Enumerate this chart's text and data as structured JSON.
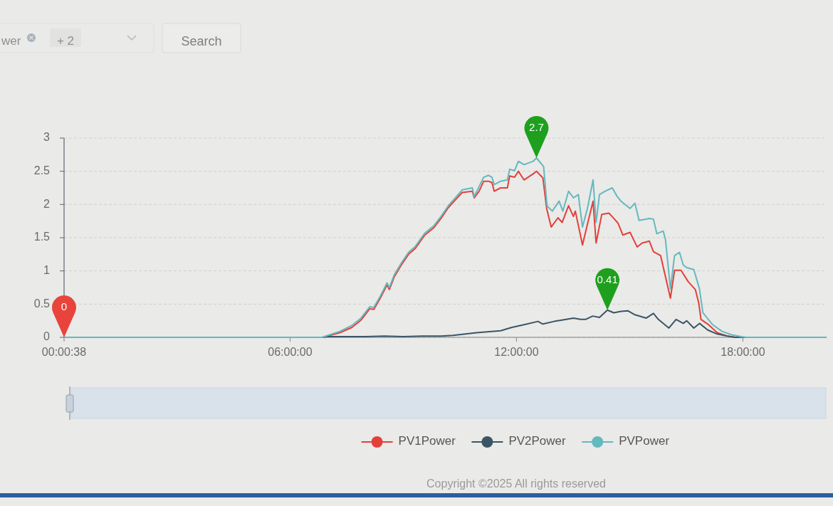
{
  "chart_data": {
    "type": "line",
    "series": [
      {
        "name": "PV1Power",
        "color": "#e2403a",
        "x": [
          0.0106,
          6.85,
          7.0,
          7.32,
          7.64,
          7.88,
          8.11,
          8.22,
          8.39,
          8.57,
          8.63,
          8.76,
          8.95,
          9.14,
          9.32,
          9.57,
          9.81,
          10.0,
          10.19,
          10.38,
          10.56,
          10.83,
          10.88,
          11.01,
          11.13,
          11.26,
          11.35,
          11.41,
          11.58,
          11.76,
          11.82,
          11.95,
          12.05,
          12.2,
          12.44,
          12.53,
          12.7,
          12.8,
          12.92,
          13.1,
          13.21,
          13.38,
          13.51,
          13.56,
          13.75,
          13.88,
          14.03,
          14.11,
          14.26,
          14.45,
          14.58,
          14.69,
          14.82,
          15.01,
          15.2,
          15.33,
          15.52,
          15.63,
          15.82,
          15.95,
          16.08,
          16.19,
          16.36,
          16.55,
          16.74,
          16.83,
          16.89,
          17.07,
          17.32,
          17.58,
          17.8,
          20.2
        ],
        "values": [
          0,
          0,
          0.02,
          0.07,
          0.15,
          0.26,
          0.43,
          0.42,
          0.59,
          0.79,
          0.72,
          0.91,
          1.09,
          1.25,
          1.34,
          1.54,
          1.65,
          1.79,
          1.95,
          2.07,
          2.18,
          2.2,
          2.1,
          2.2,
          2.35,
          2.35,
          2.33,
          2.2,
          2.25,
          2.25,
          2.43,
          2.41,
          2.5,
          2.37,
          2.46,
          2.5,
          2.4,
          1.94,
          1.66,
          1.8,
          1.73,
          1.98,
          1.82,
          1.9,
          1.39,
          1.7,
          2.05,
          1.42,
          1.85,
          1.87,
          1.79,
          1.72,
          1.54,
          1.58,
          1.36,
          1.42,
          1.45,
          1.29,
          1.23,
          0.91,
          0.59,
          1.01,
          1.01,
          0.84,
          0.72,
          0.52,
          0.27,
          0.2,
          0.07,
          0.02,
          0,
          0
        ]
      },
      {
        "name": "PV2Power",
        "color": "#3b5565",
        "x": [
          0.0106,
          6.85,
          7.0,
          8.0,
          8.5,
          9.0,
          9.5,
          10.0,
          10.32,
          10.94,
          11.58,
          11.88,
          12.2,
          12.57,
          12.7,
          13.0,
          13.32,
          13.51,
          13.7,
          13.83,
          14.02,
          14.2,
          14.41,
          14.58,
          14.77,
          14.95,
          15.14,
          15.44,
          15.63,
          15.76,
          16.04,
          16.23,
          16.42,
          16.51,
          16.7,
          16.85,
          17.07,
          17.32,
          17.58,
          17.8,
          20.2
        ],
        "values": [
          0,
          0,
          0.01,
          0.01,
          0.02,
          0.01,
          0.02,
          0.02,
          0.03,
          0.07,
          0.1,
          0.15,
          0.19,
          0.24,
          0.2,
          0.24,
          0.27,
          0.29,
          0.27,
          0.27,
          0.32,
          0.3,
          0.41,
          0.37,
          0.39,
          0.4,
          0.34,
          0.29,
          0.36,
          0.27,
          0.14,
          0.27,
          0.21,
          0.25,
          0.14,
          0.21,
          0.11,
          0.05,
          0.02,
          0,
          0
        ]
      },
      {
        "name": "PVPower",
        "color": "#63b9be",
        "x": [
          0.0106,
          6.85,
          7.0,
          7.32,
          7.64,
          7.88,
          8.11,
          8.22,
          8.39,
          8.57,
          8.63,
          8.76,
          8.95,
          9.14,
          9.32,
          9.57,
          9.81,
          10.0,
          10.19,
          10.38,
          10.56,
          10.83,
          10.88,
          11.01,
          11.13,
          11.26,
          11.35,
          11.41,
          11.58,
          11.76,
          11.82,
          11.95,
          12.05,
          12.2,
          12.44,
          12.53,
          12.72,
          12.81,
          12.95,
          13.13,
          13.23,
          13.38,
          13.51,
          13.64,
          13.75,
          13.88,
          14.03,
          14.11,
          14.2,
          14.35,
          14.54,
          14.67,
          14.77,
          15.01,
          15.14,
          15.25,
          15.52,
          15.63,
          15.72,
          15.89,
          15.95,
          16.08,
          16.19,
          16.32,
          16.42,
          16.51,
          16.7,
          16.85,
          16.94,
          17.2,
          17.45,
          17.69,
          17.95,
          18.1,
          20.2
        ],
        "values": [
          0,
          0,
          0.03,
          0.09,
          0.18,
          0.29,
          0.46,
          0.45,
          0.62,
          0.82,
          0.75,
          0.94,
          1.12,
          1.28,
          1.37,
          1.57,
          1.68,
          1.82,
          1.98,
          2.1,
          2.22,
          2.25,
          2.12,
          2.27,
          2.41,
          2.44,
          2.41,
          2.3,
          2.35,
          2.37,
          2.53,
          2.51,
          2.65,
          2.6,
          2.65,
          2.7,
          2.57,
          1.98,
          1.9,
          2.05,
          1.9,
          2.2,
          2.1,
          2.15,
          1.66,
          1.94,
          2.37,
          1.73,
          2.15,
          2.2,
          2.25,
          2.12,
          2.05,
          1.94,
          2.02,
          1.76,
          1.79,
          1.78,
          1.56,
          1.6,
          1.47,
          0.73,
          1.23,
          1.28,
          1.09,
          1.05,
          1.02,
          0.73,
          0.37,
          0.19,
          0.09,
          0.04,
          0.01,
          0,
          0
        ]
      }
    ],
    "xlim": [
      0.0106,
      20.2
    ],
    "xticks": [
      {
        "value": 0.0106,
        "label": "00:00:38"
      },
      {
        "value": 6,
        "label": "06:00:00"
      },
      {
        "value": 12,
        "label": "12:00:00"
      },
      {
        "value": 18,
        "label": "18:00:00"
      }
    ],
    "ylim": [
      0,
      3
    ],
    "yticks": [
      0,
      0.5,
      1,
      1.5,
      2,
      2.5,
      3
    ],
    "grid": "y",
    "legend": "bottom",
    "annotations": [
      "wer",
      "+ 2",
      "Search",
      "Copyright ©2025 All rights reserved",
      {
        "text": "2.7",
        "x": 12.53,
        "y": 2.7
      },
      {
        "text": "0.41",
        "x": 14.41,
        "y": 0.41
      },
      {
        "text": "0",
        "x": 0.0106,
        "y": 0
      }
    ]
  }
}
